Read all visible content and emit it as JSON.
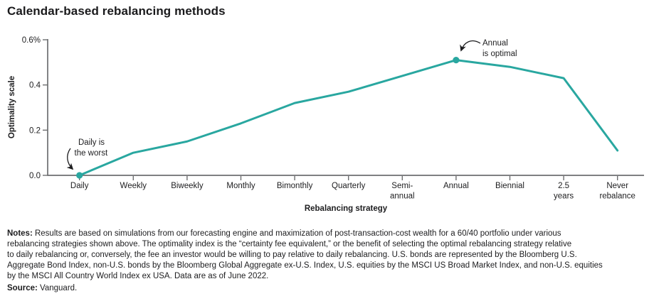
{
  "chart_data": {
    "type": "line",
    "title": "Calendar-based rebalancing methods",
    "categories": [
      "Daily",
      "Weekly",
      "Biweekly",
      "Monthly",
      "Bimonthly",
      "Quarterly",
      "Semi-annual",
      "Annual",
      "Biennial",
      "2.5 years",
      "Never rebalance"
    ],
    "xtick_lines": [
      [
        "Daily"
      ],
      [
        "Weekly"
      ],
      [
        "Biweekly"
      ],
      [
        "Monthly"
      ],
      [
        "Bimonthly"
      ],
      [
        "Quarterly"
      ],
      [
        "Semi-",
        "annual"
      ],
      [
        "Annual"
      ],
      [
        "Biennial"
      ],
      [
        "2.5",
        "years"
      ],
      [
        "Never",
        "rebalance"
      ]
    ],
    "values": [
      0.0,
      0.1,
      0.15,
      0.23,
      0.32,
      0.37,
      0.44,
      0.51,
      0.48,
      0.43,
      0.11
    ],
    "xlabel": "Rebalancing strategy",
    "ylabel": "Optimality scale",
    "ylim": [
      0,
      0.6
    ],
    "yticks": [
      {
        "value": 0.6,
        "label": "0.6%"
      },
      {
        "value": 0.4,
        "label": "0.4"
      },
      {
        "value": 0.2,
        "label": "0.2"
      },
      {
        "value": 0.0,
        "label": "0.0"
      }
    ],
    "grid": false,
    "legend": "none",
    "line_color": "#29a7a0",
    "marker_indices": [
      0,
      7
    ],
    "annotations": [
      {
        "lines": [
          "Daily is",
          "the worst"
        ],
        "target_index": 0
      },
      {
        "lines": [
          "Annual",
          "is optimal"
        ],
        "target_index": 7
      }
    ]
  },
  "colors": {
    "accent_teal": "#29a7a0",
    "text_dark": "#1d1d1f",
    "axis_gray": "#6d6e70"
  },
  "notes": {
    "label": "Notes:",
    "text": " Results are based on simulations from our forecasting engine and maximization of post-transaction-cost wealth for a 60/40 portfolio under various\nrebalancing strategies shown above. The optimality index is the “certainty fee equivalent,” or the benefit of selecting the optimal rebalancing strategy relative\nto daily rebalancing or, conversely, the fee an investor would be willing to pay relative to daily rebalancing. U.S. bonds are represented by the Bloomberg U.S.\nAggregate Bond Index, non-U.S. bonds by the Bloomberg Global Aggregate ex-U.S. Index, U.S. equities by the MSCI US Broad Market Index, and non-U.S. equities\nby the MSCI All Country World Index ex USA. Data are as of June 2022."
  },
  "source": {
    "label": "Source:",
    "text": " Vanguard."
  }
}
